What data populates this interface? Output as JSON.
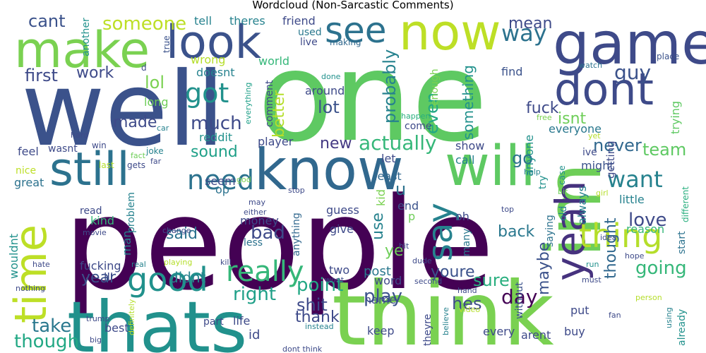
{
  "title": "Wordcloud (Non-Sarcastic Comments)",
  "palette": "viridis",
  "words": [
    {
      "text": "people",
      "color": "#440154"
    },
    {
      "text": "one",
      "color": "#5ec962"
    },
    {
      "text": "well",
      "color": "#3b528b"
    },
    {
      "text": "think",
      "color": "#7ad151"
    },
    {
      "text": "thats",
      "color": "#21918c"
    },
    {
      "text": "im",
      "color": "#6ece58"
    },
    {
      "text": "game",
      "color": "#3e4a89"
    },
    {
      "text": "know",
      "color": "#31688e"
    },
    {
      "text": "will",
      "color": "#5ec962"
    },
    {
      "text": "make",
      "color": "#7ad151"
    },
    {
      "text": "look",
      "color": "#3b528b"
    },
    {
      "text": "now",
      "color": "#bddf26"
    },
    {
      "text": "dont",
      "color": "#3e4a89"
    },
    {
      "text": "still",
      "color": "#2c728e"
    },
    {
      "text": "see",
      "color": "#2c728e"
    },
    {
      "text": "time",
      "color": "#bddf26"
    },
    {
      "text": "yeah",
      "color": "#46327e"
    },
    {
      "text": "say",
      "color": "#26828e"
    },
    {
      "text": "thing",
      "color": "#b5de2b"
    },
    {
      "text": "good",
      "color": "#21918c"
    },
    {
      "text": "really",
      "color": "#35b779"
    },
    {
      "text": "need",
      "color": "#2c728e"
    },
    {
      "text": "got",
      "color": "#21918c"
    },
    {
      "text": "want",
      "color": "#26828e"
    },
    {
      "text": "way",
      "color": "#2c728e"
    },
    {
      "text": "guy",
      "color": "#3b528b"
    },
    {
      "text": "day",
      "color": "#440154"
    },
    {
      "text": "actually",
      "color": "#35b779"
    },
    {
      "text": "going",
      "color": "#35b779"
    },
    {
      "text": "much",
      "color": "#3e4a89"
    },
    {
      "text": "love",
      "color": "#3e4a89"
    },
    {
      "text": "point",
      "color": "#22a884"
    },
    {
      "text": "play",
      "color": "#3b528b"
    },
    {
      "text": "take",
      "color": "#2a788e"
    },
    {
      "text": "though",
      "color": "#22a884"
    },
    {
      "text": "someone",
      "color": "#bddf26"
    },
    {
      "text": "cant",
      "color": "#3b528b"
    },
    {
      "text": "lol",
      "color": "#7ad151"
    },
    {
      "text": "work",
      "color": "#3e4a89"
    },
    {
      "text": "first",
      "color": "#3e4a89"
    },
    {
      "text": "made",
      "color": "#3e4a89"
    },
    {
      "text": "sound",
      "color": "#1fa088"
    },
    {
      "text": "said",
      "color": "#2c728e"
    },
    {
      "text": "bad",
      "color": "#3e4a89"
    },
    {
      "text": "right",
      "color": "#1fa088"
    },
    {
      "text": "didnt",
      "color": "#26828e"
    },
    {
      "text": "year",
      "color": "#3b528b"
    },
    {
      "text": "youre",
      "color": "#3b528b"
    },
    {
      "text": "sure",
      "color": "#29af7f"
    },
    {
      "text": "back",
      "color": "#2a788e"
    },
    {
      "text": "new",
      "color": "#443983"
    },
    {
      "text": "better",
      "color": "#b5de2b"
    },
    {
      "text": "lot",
      "color": "#3b528b"
    },
    {
      "text": "probably",
      "color": "#26828e"
    },
    {
      "text": "even",
      "color": "#22a884"
    },
    {
      "text": "something",
      "color": "#21918c"
    },
    {
      "text": "fuck",
      "color": "#3e4a89"
    },
    {
      "text": "never",
      "color": "#31688e"
    },
    {
      "text": "team",
      "color": "#5ec962"
    },
    {
      "text": "mean",
      "color": "#3e4a89"
    },
    {
      "text": "isnt",
      "color": "#6ece58"
    },
    {
      "text": "shit",
      "color": "#3e4a89"
    },
    {
      "text": "hes",
      "color": "#3e4a89"
    },
    {
      "text": "thank",
      "color": "#3e4a89"
    },
    {
      "text": "thought",
      "color": "#31688e"
    },
    {
      "text": "go",
      "color": "#2c728e"
    },
    {
      "text": "maybe",
      "color": "#3b528b"
    },
    {
      "text": "ye",
      "color": "#6ece58"
    },
    {
      "text": "use",
      "color": "#26828e"
    },
    {
      "text": "u",
      "color": "#2c728e"
    },
    {
      "text": "friend",
      "color": "#3e4a89"
    },
    {
      "text": "tell",
      "color": "#26828e"
    },
    {
      "text": "theres",
      "color": "#26828e"
    },
    {
      "text": "world",
      "color": "#35b779"
    },
    {
      "text": "doesnt",
      "color": "#26828e"
    },
    {
      "text": "another",
      "color": "#21918c"
    },
    {
      "text": "wrong",
      "color": "#b5de2b"
    },
    {
      "text": "long",
      "color": "#6ece58"
    },
    {
      "text": "reddit",
      "color": "#21918c"
    },
    {
      "text": "used",
      "color": "#2a788e"
    },
    {
      "text": "live",
      "color": "#3e4a89"
    },
    {
      "text": "making",
      "color": "#31688e"
    },
    {
      "text": "around",
      "color": "#3e4a89"
    },
    {
      "text": "comment",
      "color": "#3e4a89"
    },
    {
      "text": "enough",
      "color": "#7ad151"
    },
    {
      "text": "happen",
      "color": "#29af7f"
    },
    {
      "text": "done",
      "color": "#21918c"
    },
    {
      "text": "find",
      "color": "#3b528b"
    },
    {
      "text": "watch",
      "color": "#2c728e"
    },
    {
      "text": "place",
      "color": "#3b528b"
    },
    {
      "text": "trying",
      "color": "#5ec962"
    },
    {
      "text": "free",
      "color": "#7ad151"
    },
    {
      "text": "everyone",
      "color": "#2a788e"
    },
    {
      "text": "come",
      "color": "#3e4a89"
    },
    {
      "text": "call",
      "color": "#26828e"
    },
    {
      "text": "player",
      "color": "#3e4a89"
    },
    {
      "text": "everything",
      "color": "#1fa088"
    },
    {
      "text": "true",
      "color": "#3b528b"
    },
    {
      "text": "feel",
      "color": "#3e4a89"
    },
    {
      "text": "wasnt",
      "color": "#3e4a89"
    },
    {
      "text": "nice",
      "color": "#bddf26"
    },
    {
      "text": "great",
      "color": "#2c728e"
    },
    {
      "text": "win",
      "color": "#3e4a89"
    },
    {
      "text": "fact",
      "color": "#6ece58"
    },
    {
      "text": "joke",
      "color": "#26828e"
    },
    {
      "text": "last",
      "color": "#b5de2b"
    },
    {
      "text": "gets",
      "color": "#3e4a89"
    },
    {
      "text": "far",
      "color": "#3e4a89"
    },
    {
      "text": "hard",
      "color": "#3e4a89"
    },
    {
      "text": "car",
      "color": "#26828e"
    },
    {
      "text": "let",
      "color": "#3e4a89"
    },
    {
      "text": "least",
      "color": "#31688e"
    },
    {
      "text": "kid",
      "color": "#7ad151"
    },
    {
      "text": "show",
      "color": "#3e4a89"
    },
    {
      "text": "anyone",
      "color": "#21918c"
    },
    {
      "text": "try",
      "color": "#21918c"
    },
    {
      "text": "help",
      "color": "#26828e"
    },
    {
      "text": "might",
      "color": "#3b528b"
    },
    {
      "text": "ive",
      "color": "#3e4a89"
    },
    {
      "text": "case",
      "color": "#21918c"
    },
    {
      "text": "getting",
      "color": "#3e4a89"
    },
    {
      "text": "yet",
      "color": "#b5de2b"
    },
    {
      "text": "little",
      "color": "#26828e"
    },
    {
      "text": "girl",
      "color": "#b5de2b"
    },
    {
      "text": "different",
      "color": "#29af7f"
    },
    {
      "text": "start",
      "color": "#2c728e"
    },
    {
      "text": "reason",
      "color": "#35b779"
    },
    {
      "text": "idea",
      "color": "#3e4a89"
    },
    {
      "text": "always",
      "color": "#26828e"
    },
    {
      "text": "saying",
      "color": "#2c728e"
    },
    {
      "text": "old",
      "color": "#26828e"
    },
    {
      "text": "bit",
      "color": "#6ece58"
    },
    {
      "text": "top",
      "color": "#3e4a89"
    },
    {
      "text": "hope",
      "color": "#3e4a89"
    },
    {
      "text": "seem",
      "color": "#3e4a89"
    },
    {
      "text": "op",
      "color": "#2c728e"
    },
    {
      "text": "god",
      "color": "#7ad151"
    },
    {
      "text": "stop",
      "color": "#3e4a89"
    },
    {
      "text": "may",
      "color": "#3e4a89"
    },
    {
      "text": "either",
      "color": "#3e4a89"
    },
    {
      "text": "guess",
      "color": "#3e4a89"
    },
    {
      "text": "end",
      "color": "#3b528b"
    },
    {
      "text": "p",
      "color": "#6ece58"
    },
    {
      "text": "oh",
      "color": "#3e4a89"
    },
    {
      "text": "give",
      "color": "#3e4a89"
    },
    {
      "text": "money",
      "color": "#3e4a89"
    },
    {
      "text": "kind",
      "color": "#35b779"
    },
    {
      "text": "read",
      "color": "#3e4a89"
    },
    {
      "text": "problem",
      "color": "#26828e"
    },
    {
      "text": "change",
      "color": "#3e4a89"
    },
    {
      "text": "less",
      "color": "#2c728e"
    },
    {
      "text": "anything",
      "color": "#31688e"
    },
    {
      "text": "many",
      "color": "#2a788e"
    },
    {
      "text": "man",
      "color": "#26828e"
    },
    {
      "text": "wouldnt",
      "color": "#21918c"
    },
    {
      "text": "movie",
      "color": "#3e4a89"
    },
    {
      "text": "hate",
      "color": "#3e4a89"
    },
    {
      "text": "fucking",
      "color": "#3e4a89"
    },
    {
      "text": "real",
      "color": "#26828e"
    },
    {
      "text": "playing",
      "color": "#b5de2b"
    },
    {
      "text": "kill",
      "color": "#3e4a89"
    },
    {
      "text": "ill",
      "color": "#3e4a89"
    },
    {
      "text": "nothing",
      "color": "#3e4a89"
    },
    {
      "text": "two",
      "color": "#3e4a89"
    },
    {
      "text": "word",
      "color": "#3e4a89"
    },
    {
      "text": "post",
      "color": "#2a788e"
    },
    {
      "text": "hit",
      "color": "#3e4a89"
    },
    {
      "text": "dude",
      "color": "#3e4a89"
    },
    {
      "text": "wont",
      "color": "#3e4a89"
    },
    {
      "text": "second",
      "color": "#3e4a89"
    },
    {
      "text": "hand",
      "color": "#3e4a89"
    },
    {
      "text": "video",
      "color": "#b5de2b"
    },
    {
      "text": "must",
      "color": "#3e4a89"
    },
    {
      "text": "run",
      "color": "#21918c"
    },
    {
      "text": "person",
      "color": "#b5de2b"
    },
    {
      "text": "without",
      "color": "#3b528b"
    },
    {
      "text": "put",
      "color": "#3e4a89"
    },
    {
      "text": "buy",
      "color": "#3e4a89"
    },
    {
      "text": "fan",
      "color": "#3e4a89"
    },
    {
      "text": "using",
      "color": "#26828e"
    },
    {
      "text": "already",
      "color": "#21918c"
    },
    {
      "text": "every",
      "color": "#3e4a89"
    },
    {
      "text": "arent",
      "color": "#3e4a89"
    },
    {
      "text": "name",
      "color": "#3e4a89"
    },
    {
      "text": "keep",
      "color": "#3e4a89"
    },
    {
      "text": "theyre",
      "color": "#3e4a89"
    },
    {
      "text": "believe",
      "color": "#26828e"
    },
    {
      "text": "life",
      "color": "#3e4a89"
    },
    {
      "text": "id",
      "color": "#3e4a89"
    },
    {
      "text": "part",
      "color": "#3e4a89"
    },
    {
      "text": "instead",
      "color": "#26828e"
    },
    {
      "text": "dont think",
      "color": "#3e4a89"
    },
    {
      "text": "best",
      "color": "#3e4a89"
    },
    {
      "text": "trump",
      "color": "#3e4a89"
    },
    {
      "text": "big",
      "color": "#3e4a89"
    },
    {
      "text": "definitely",
      "color": "#b5de2b"
    },
    {
      "text": "d",
      "color": "#3e4a89"
    },
    {
      "text": "s",
      "color": "#3e4a89"
    }
  ]
}
